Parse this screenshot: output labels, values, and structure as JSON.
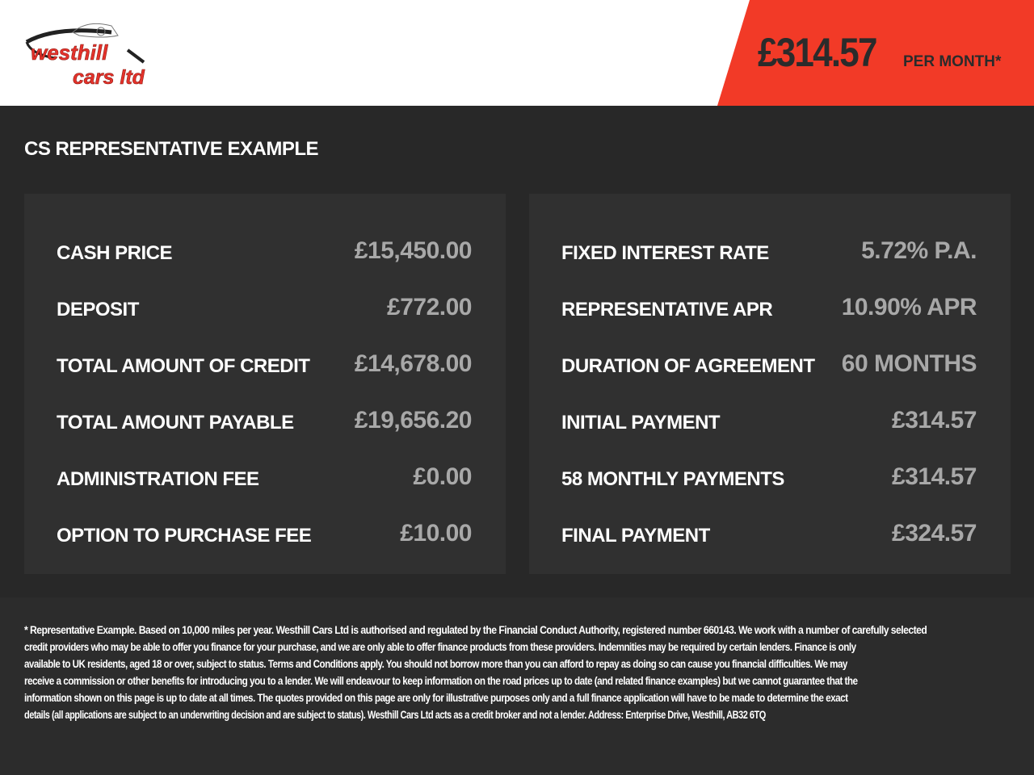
{
  "header": {
    "logo_text": "westhill cars ltd",
    "monthly_price": "£314.57",
    "per_month_label": "PER MONTH*",
    "accent_color": "#f23a27"
  },
  "title": "CS REPRESENTATIVE EXAMPLE",
  "left_panel": [
    {
      "label": "CASH PRICE",
      "value": "£15,450.00"
    },
    {
      "label": "DEPOSIT",
      "value": "£772.00"
    },
    {
      "label": "TOTAL AMOUNT OF CREDIT",
      "value": "£14,678.00"
    },
    {
      "label": "TOTAL AMOUNT PAYABLE",
      "value": "£19,656.20"
    },
    {
      "label": "ADMINISTRATION FEE",
      "value": "£0.00"
    },
    {
      "label": "OPTION TO PURCHASE FEE",
      "value": "£10.00"
    }
  ],
  "right_panel": [
    {
      "label": "FIXED INTEREST RATE",
      "value": "5.72% P.A."
    },
    {
      "label": "REPRESENTATIVE APR",
      "value": "10.90% APR"
    },
    {
      "label": "DURATION OF AGREEMENT",
      "value": "60 MONTHS"
    },
    {
      "label": "INITIAL PAYMENT",
      "value": "£314.57"
    },
    {
      "label": "58 MONTHLY PAYMENTS",
      "value": "£314.57"
    },
    {
      "label": "FINAL PAYMENT",
      "value": "£324.57"
    }
  ],
  "disclaimer_lines": [
    "* Representative Example. Based on 10,000 miles per year. Westhill Cars Ltd is authorised and regulated by the Financial Conduct Authority, registered number 660143. We work with a number of carefully selected",
    "credit providers who may be able to offer you finance for your purchase, and we are only able to offer finance products from these providers. Indemnities may be required by certain lenders. Finance is only",
    "available to UK residents, aged 18 or over, subject to status. Terms and Conditions apply. You should not borrow more than you can afford to repay as doing so can cause you financial difficulties. We may",
    "receive a commission or other benefits for introducing you to a lender. We will endeavour to keep information on the road prices up to date (and related finance examples) but we cannot guarantee that the",
    "information shown on this page is up to date at all times. The quotes provided on this page are only for illustrative purposes only and a full finance application will have to be made to determine the exact",
    "details (all applications are subject to an underwriting decision and are subject to status). Westhill Cars Ltd acts as a credit broker and not a lender. Address: Enterprise Drive, Westhill, AB32 6TQ"
  ]
}
